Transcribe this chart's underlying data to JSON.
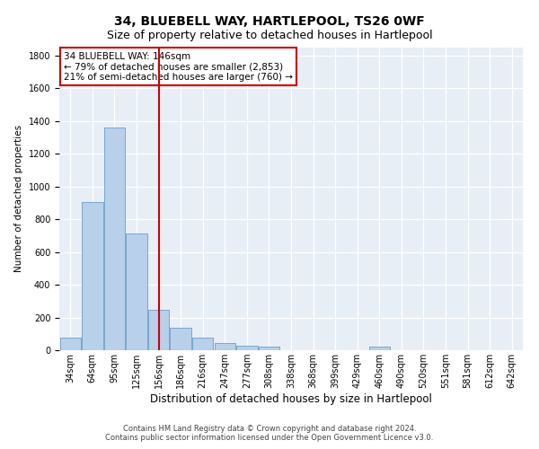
{
  "title1": "34, BLUEBELL WAY, HARTLEPOOL, TS26 0WF",
  "title2": "Size of property relative to detached houses in Hartlepool",
  "xlabel": "Distribution of detached houses by size in Hartlepool",
  "ylabel": "Number of detached properties",
  "footer1": "Contains HM Land Registry data © Crown copyright and database right 2024.",
  "footer2": "Contains public sector information licensed under the Open Government Licence v3.0.",
  "annotation_line1": "34 BLUEBELL WAY: 146sqm",
  "annotation_line2": "← 79% of detached houses are smaller (2,853)",
  "annotation_line3": "21% of semi-detached houses are larger (760) →",
  "categories": [
    "34sqm",
    "64sqm",
    "95sqm",
    "125sqm",
    "156sqm",
    "186sqm",
    "216sqm",
    "247sqm",
    "277sqm",
    "308sqm",
    "338sqm",
    "368sqm",
    "399sqm",
    "429sqm",
    "460sqm",
    "490sqm",
    "520sqm",
    "551sqm",
    "581sqm",
    "612sqm",
    "642sqm"
  ],
  "values": [
    75,
    905,
    1360,
    710,
    245,
    135,
    75,
    45,
    30,
    20,
    0,
    0,
    0,
    0,
    20,
    0,
    0,
    0,
    0,
    0,
    0
  ],
  "vline_index": 4,
  "bar_color": "#b8d0ea",
  "bar_edge_color": "#6a9ec8",
  "vline_color": "#cc0000",
  "ylim": [
    0,
    1850
  ],
  "yticks": [
    0,
    200,
    400,
    600,
    800,
    1000,
    1200,
    1400,
    1600,
    1800
  ],
  "bg_color": "#e8eef6",
  "grid_color": "#ffffff",
  "annotation_box_facecolor": "#ffffff",
  "annotation_box_edgecolor": "#cc0000",
  "title1_fontsize": 10,
  "title2_fontsize": 9,
  "xlabel_fontsize": 8.5,
  "ylabel_fontsize": 7.5,
  "tick_fontsize": 7,
  "annotation_fontsize": 7.5,
  "footer_fontsize": 6
}
